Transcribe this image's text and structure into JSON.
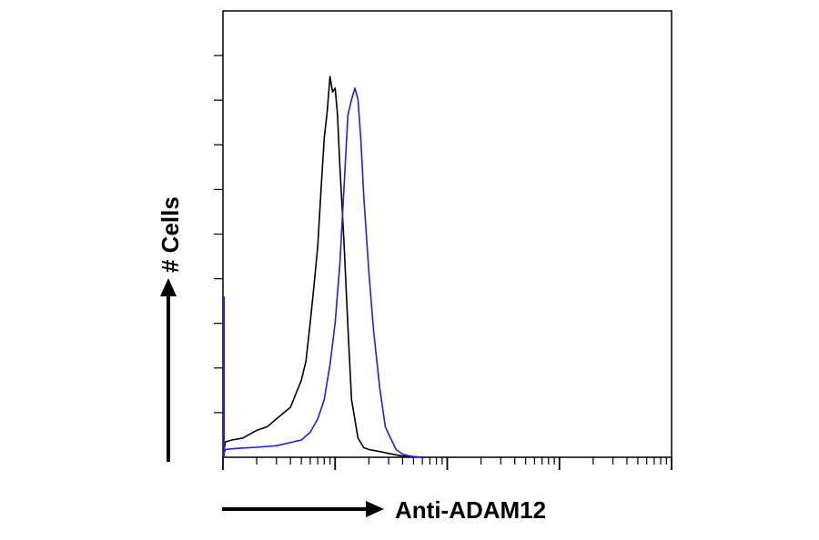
{
  "chart_data": {
    "type": "line",
    "title": "",
    "xlabel": "Anti-ADAM12",
    "ylabel": "# Cells",
    "x_scale": "log",
    "xlim": [
      1,
      10000
    ],
    "ylim": [
      0,
      100
    ],
    "grid": false,
    "legend": "none",
    "series": [
      {
        "color": "#000000",
        "x": [
          1,
          1.05,
          1.2,
          1.5,
          2,
          2.5,
          3,
          4,
          5,
          5.5,
          6,
          6.5,
          7,
          7.5,
          8,
          8.5,
          9,
          9.5,
          10,
          10.5,
          11,
          12,
          13,
          14,
          16,
          18,
          20,
          25,
          30,
          40,
          60
        ],
        "y": [
          0,
          4,
          4.5,
          5,
          7,
          8,
          10,
          13,
          20,
          25,
          35,
          45,
          55,
          70,
          83,
          90,
          99,
          95,
          96,
          89,
          76,
          56,
          34,
          15,
          5,
          2.5,
          2,
          1.5,
          1,
          0.3,
          0
        ]
      },
      {
        "color": "#1f1fe6",
        "x": [
          1,
          1.05,
          1.2,
          1.5,
          2,
          3,
          5,
          6,
          7,
          8,
          9,
          10,
          11,
          12,
          13,
          14,
          15,
          16,
          17,
          18,
          20,
          22,
          25,
          28,
          30,
          35,
          40,
          45,
          50,
          60
        ],
        "y": [
          0,
          2,
          2.2,
          2.4,
          2.6,
          3,
          4.5,
          6.5,
          10,
          15,
          24,
          35,
          50,
          70,
          89,
          93,
          96,
          93,
          82,
          68,
          48,
          33,
          18,
          8,
          6,
          2,
          0.8,
          0.4,
          0.2,
          0
        ]
      }
    ]
  }
}
